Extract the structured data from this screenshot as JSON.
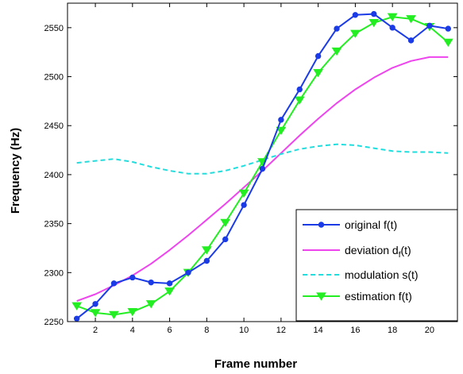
{
  "chart_data": {
    "type": "line",
    "title": "",
    "xlabel": "Frame number",
    "ylabel": "Frequency (Hz)",
    "xlim": [
      0.5,
      21.5
    ],
    "ylim": [
      2250,
      2575
    ],
    "xticks": [
      2,
      4,
      6,
      8,
      10,
      12,
      14,
      16,
      18,
      20
    ],
    "yticks": [
      2250,
      2300,
      2350,
      2400,
      2450,
      2500,
      2550
    ],
    "grid": false,
    "legend_position": "lower-right",
    "x": [
      1,
      2,
      3,
      4,
      5,
      6,
      7,
      8,
      9,
      10,
      11,
      12,
      13,
      14,
      15,
      16,
      17,
      18,
      19,
      20,
      21
    ],
    "series": [
      {
        "name": "original f(t)",
        "color": "#1a3be6",
        "line_style": "solid",
        "marker": "circle",
        "values": [
          2253,
          2268,
          2289,
          2295,
          2290,
          2289,
          2300,
          2312,
          2334,
          2369,
          2406,
          2456,
          2487,
          2521,
          2549,
          2563,
          2564,
          2550,
          2537,
          2552,
          2549
        ]
      },
      {
        "name_parts": [
          "deviation d",
          "f",
          "(t)"
        ],
        "color": "#ee44ee",
        "line_style": "solid",
        "marker": "none",
        "values": [
          2271,
          2278,
          2287,
          2297,
          2309,
          2323,
          2338,
          2354,
          2370,
          2387,
          2404,
          2422,
          2440,
          2457,
          2473,
          2487,
          2499,
          2509,
          2516,
          2520,
          2520
        ]
      },
      {
        "name": "modulation s(t)",
        "color": "#22dddd",
        "line_style": "dashed",
        "marker": "none",
        "values": [
          2412,
          2414,
          2416,
          2413,
          2408,
          2404,
          2401,
          2401,
          2404,
          2409,
          2415,
          2421,
          2426,
          2429,
          2431,
          2430,
          2427,
          2424,
          2423,
          2423,
          2422
        ]
      },
      {
        "name": "estimation f(t)",
        "color": "#22ee22",
        "line_style": "solid",
        "marker": "triangle-down",
        "values": [
          2266,
          2259,
          2257,
          2260,
          2268,
          2281,
          2300,
          2323,
          2351,
          2381,
          2413,
          2445,
          2476,
          2504,
          2526,
          2544,
          2555,
          2561,
          2559,
          2551,
          2535
        ]
      }
    ]
  }
}
